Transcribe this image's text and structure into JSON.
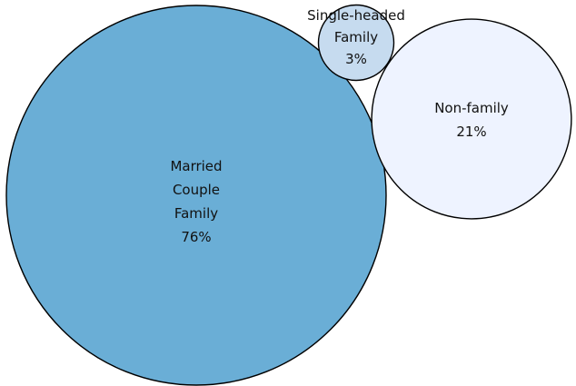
{
  "chart_data": {
    "type": "bubble",
    "title": "",
    "legend": "none",
    "series": [
      {
        "category": "Married Couple Family",
        "label_lines": [
          "Married",
          "Couple",
          "Family",
          "76%"
        ],
        "value": 76,
        "color": "#6aaed6"
      },
      {
        "category": "Single-headed Family",
        "label_lines": [
          "Single-headed",
          "Family",
          "3%"
        ],
        "value": 3,
        "color": "#c6dbef"
      },
      {
        "category": "Non-family",
        "label_lines": [
          "Non-family",
          "21%"
        ],
        "value": 21,
        "color": "#eef3ff"
      }
    ]
  }
}
